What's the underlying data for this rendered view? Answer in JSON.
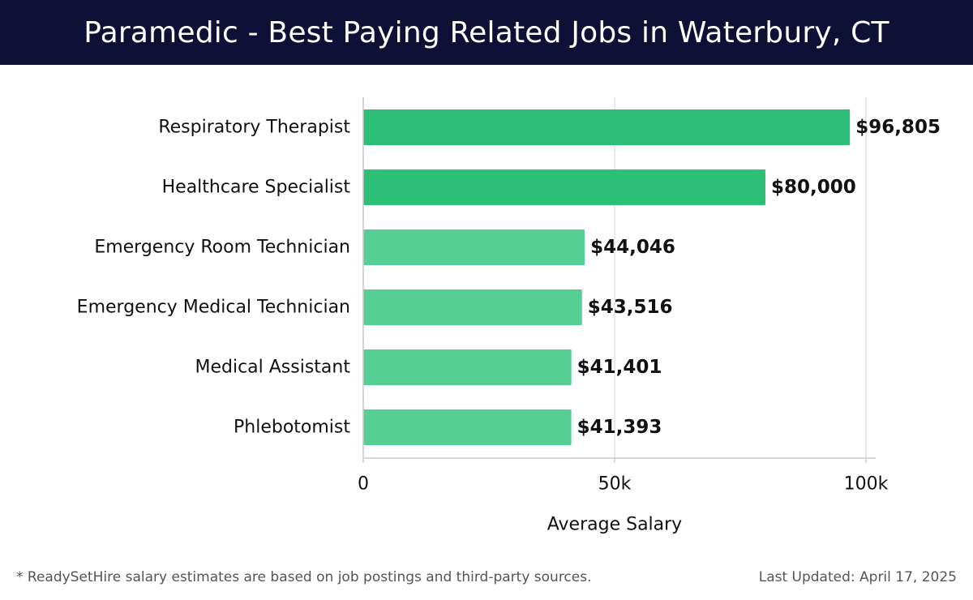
{
  "header": {
    "title": "Paramedic - Best Paying Related Jobs in Waterbury, CT"
  },
  "colors": {
    "header_bg": "#0f1035",
    "bar_top": "#2dbf78",
    "bar_light": "#56cf95",
    "grid": "#e3e3e3",
    "axis": "#cccccc",
    "text": "#111111",
    "footer_text": "#555555"
  },
  "chart_data": {
    "type": "bar",
    "orientation": "horizontal",
    "categories": [
      "Respiratory Therapist",
      "Healthcare Specialist",
      "Emergency Room Technician",
      "Emergency Medical Technician",
      "Medical Assistant",
      "Phlebotomist"
    ],
    "values": [
      96805,
      80000,
      44046,
      43516,
      41401,
      41393
    ],
    "value_labels": [
      "$96,805",
      "$80,000",
      "$44,046",
      "$43,516",
      "$41,401",
      "$41,393"
    ],
    "highlight_count": 2,
    "xlim": [
      0,
      100000
    ],
    "x_ticks": [
      0,
      50000,
      100000
    ],
    "x_tick_labels": [
      "0",
      "50k",
      "100k"
    ],
    "xlabel": "Average Salary",
    "ylabel": "",
    "grid": true
  },
  "footer": {
    "note": "* ReadySetHire salary estimates are based on job postings and third-party sources.",
    "updated": "Last Updated: April 17, 2025"
  }
}
